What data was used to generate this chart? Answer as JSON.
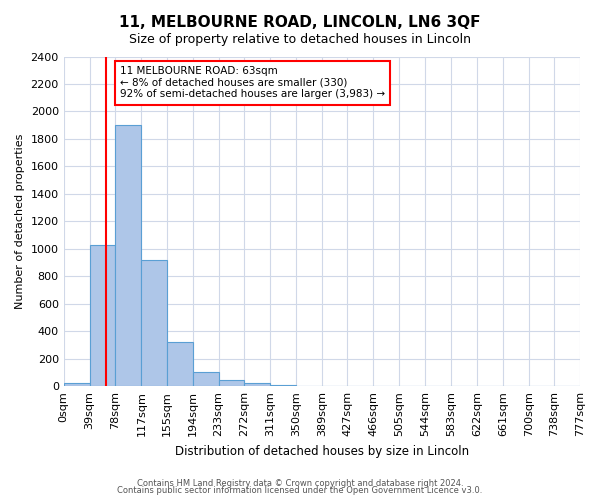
{
  "title": "11, MELBOURNE ROAD, LINCOLN, LN6 3QF",
  "subtitle": "Size of property relative to detached houses in Lincoln",
  "xlabel": "Distribution of detached houses by size in Lincoln",
  "ylabel": "Number of detached properties",
  "bar_values": [
    20,
    1025,
    1900,
    920,
    320,
    105,
    45,
    20,
    10,
    0,
    0,
    0,
    0,
    0,
    0,
    0,
    0,
    0,
    0,
    0
  ],
  "bin_edges": [
    0,
    39,
    78,
    117,
    155,
    194,
    233,
    272,
    311,
    350,
    389,
    427,
    466,
    505,
    544,
    583,
    622,
    661,
    700,
    738,
    777
  ],
  "tick_labels": [
    "0sqm",
    "39sqm",
    "78sqm",
    "117sqm",
    "155sqm",
    "194sqm",
    "233sqm",
    "272sqm",
    "311sqm",
    "350sqm",
    "389sqm",
    "427sqm",
    "466sqm",
    "505sqm",
    "544sqm",
    "583sqm",
    "622sqm",
    "661sqm",
    "700sqm",
    "738sqm",
    "777sqm"
  ],
  "bar_color": "#aec6e8",
  "bar_edge_color": "#5a9fd4",
  "red_line_x": 63,
  "ylim": [
    0,
    2400
  ],
  "yticks": [
    0,
    200,
    400,
    600,
    800,
    1000,
    1200,
    1400,
    1600,
    1800,
    2000,
    2200,
    2400
  ],
  "annotation_box_text": "11 MELBOURNE ROAD: 63sqm\n← 8% of detached houses are smaller (330)\n92% of semi-detached houses are larger (3,983) →",
  "footer_line1": "Contains HM Land Registry data © Crown copyright and database right 2024.",
  "footer_line2": "Contains public sector information licensed under the Open Government Licence v3.0.",
  "background_color": "#ffffff",
  "grid_color": "#d0d8e8"
}
